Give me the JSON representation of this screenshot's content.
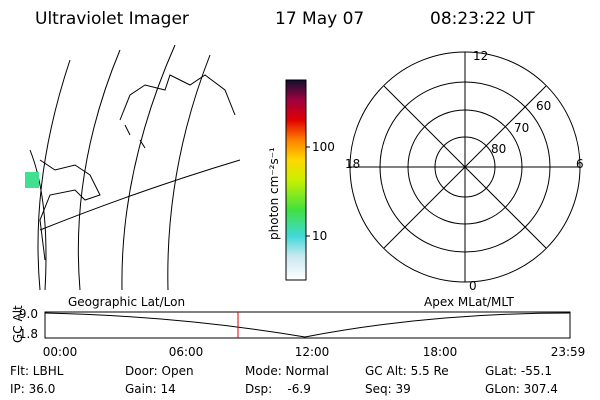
{
  "header": {
    "instrument": "Ultraviolet Imager",
    "date": "17 May 07",
    "time": "08:23:22 UT"
  },
  "colorbar": {
    "unit": "photon cm⁻²s⁻¹",
    "ticks": [
      "100",
      "10"
    ]
  },
  "polar": {
    "mlt": {
      "top": "12",
      "bottom": "0",
      "left": "18",
      "right": "6"
    },
    "mlat": [
      "60",
      "70",
      "80"
    ]
  },
  "altitude": {
    "axis_label": "GC Alt",
    "yticks": [
      "9.0",
      "1.8"
    ],
    "left_title": "Geographic Lat/Lon",
    "right_title": "Apex MLat/MLT",
    "xticks": [
      "00:00",
      "06:00",
      "12:00",
      "18:00",
      "23:59"
    ]
  },
  "footer": {
    "rows": [
      [
        "Flt: LBHL",
        "Door: Open",
        "Mode: Normal",
        "GC Alt: 5.5 Re",
        "GLat: -55.1"
      ],
      [
        "IP: 36.0",
        "Gain: 14",
        "Dsp:    -6.9",
        "Seq: 39",
        "GLon: 307.4"
      ]
    ]
  }
}
